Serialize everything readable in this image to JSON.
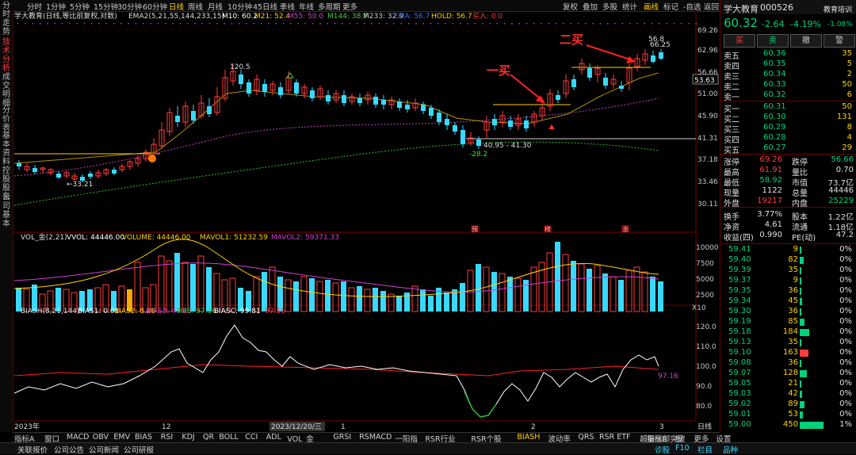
{
  "left_tabs": [
    "分时走势",
    "技术分析",
    "成交明细",
    "分价表",
    "基本资料",
    "控股股东",
    "公司基本"
  ],
  "toolbar": {
    "periods": [
      "分时",
      "1分钟",
      "5分钟",
      "15分钟",
      "30分钟",
      "60分钟",
      "日线",
      "周线",
      "月线",
      "10分钟",
      "45日线",
      "季线",
      "年线",
      "多周期",
      "更多"
    ],
    "active_period": "日线",
    "right_items": [
      "复权",
      "叠加",
      "多股",
      "统计",
      "画线",
      "标记",
      "-自选",
      "返回"
    ],
    "right_highlight": "画线"
  },
  "main_legend": {
    "stock": "学大教育(日线,等比前复权,对数)",
    "ema": "EMA2(5,21,55,144,233,15)",
    "items": [
      {
        "label": "M10: 60.2",
        "color": "#ffffff"
      },
      {
        "label": "M21: 52.4",
        "color": "#ffd200"
      },
      {
        "label": "M55: 50.0",
        "color": "#d040d0"
      },
      {
        "label": "M144: 38.7",
        "color": "#3cd03c"
      },
      {
        "label": "M233: 32.9",
        "color": "#cccccc"
      },
      {
        "label": "EMA: 56.7",
        "color": "#3c6cff"
      },
      {
        "label": "HOLD: 56.7",
        "color": "#ffd200"
      },
      {
        "label": "买入: 0.0",
        "color": "#ff3c3c"
      }
    ]
  },
  "price_axis": [
    "69.26",
    "62.96",
    "56.66",
    "51.00",
    "45.90",
    "41.31",
    "37.18",
    "33.46",
    "30.11"
  ],
  "current_price_tag": "53.63",
  "annotations": {
    "high1": "120.5",
    "low1": "←33.21",
    "low2": "-28.2",
    "range": "40.95 - 41.30",
    "high2": "56.8",
    "high3": "66.25",
    "buy1": "一买",
    "buy2": "二买",
    "tag1": "预",
    "tag2": "榜",
    "tag3": "涨"
  },
  "volume_legend": {
    "name": "VOL_金(2,21)",
    "items": [
      {
        "label": "VVOL: 44446.00",
        "color": "#ffffff"
      },
      {
        "label": "VOLUME: 44446.00",
        "color": "#ffd200"
      },
      {
        "label": "MAVOL1: 51232.59",
        "color": "#ffd200"
      },
      {
        "label": "MAVOL2: 59371.33",
        "color": "#d040d0"
      }
    ],
    "axis": [
      "10000",
      "7500",
      "5000",
      "2500"
    ],
    "unit": "X10"
  },
  "bias_legend": {
    "name": "BIASH(8,21,144)",
    "items": [
      {
        "label": "BIAS1: 0.01",
        "color": "#ffffff"
      },
      {
        "label": "BIAS2: 8.26",
        "color": "#ffd200"
      },
      {
        "label": "BIAS3: 43.13",
        "color": "#d040d0"
      },
      {
        "label": "RPS: 97.16",
        "color": "#3cd03c"
      },
      {
        "label": "BIASC: 99.81",
        "color": "#ffffff"
      },
      {
        "label": "- 97.16",
        "color": "#ff3c3c"
      }
    ],
    "axis": [
      "120.0",
      "110.0",
      "100.0",
      "90.0",
      "80.0"
    ],
    "last_value": "97.16"
  },
  "time_axis": {
    "labels": [
      "2023年",
      "12",
      "2023/12/20/三",
      "1",
      "2",
      "3"
    ],
    "right": "日线"
  },
  "indicator_bar": {
    "items": [
      "指标A",
      "窗口",
      "MACD",
      "OBV",
      "EMV",
      "BIAS",
      "RSI",
      "KDJ",
      "QR",
      "BOLL",
      "CCI",
      "ADL",
      "VOL_金",
      "GRSI",
      "RSMACD",
      "一阳指",
      "RSR行业",
      "RSR个股",
      "BIASH",
      "波动率",
      "QRS",
      "RSR ETF",
      "超量底部突破",
      "更多",
      "设置"
    ],
    "highlight": "BIASH",
    "right": [
      "指标B",
      "板"
    ]
  },
  "status_bar": {
    "left": [
      "关联报价",
      "公司公告",
      "公司新闻",
      "公司研报"
    ],
    "right": [
      "诊股",
      "F10",
      "栏目",
      "品种"
    ]
  },
  "quote": {
    "name": "学大教育",
    "code": "000526",
    "tag": "教育培训",
    "price": "60.32",
    "change": "-2.64",
    "change_pct": "-4.19%",
    "sector_pct": "-1.08%",
    "buttons": [
      "买",
      "卖",
      "撤",
      "警"
    ],
    "asks": [
      {
        "label": "卖五",
        "price": "60.36",
        "vol": "35"
      },
      {
        "label": "卖四",
        "price": "60.35",
        "vol": "5"
      },
      {
        "label": "卖三",
        "price": "60.34",
        "vol": "2"
      },
      {
        "label": "卖二",
        "price": "60.33",
        "vol": "50"
      },
      {
        "label": "卖一",
        "price": "60.32",
        "vol": "6"
      }
    ],
    "bids": [
      {
        "label": "买一",
        "price": "60.31",
        "vol": "50"
      },
      {
        "label": "买二",
        "price": "60.30",
        "vol": "131"
      },
      {
        "label": "买三",
        "price": "60.29",
        "vol": "8"
      },
      {
        "label": "买四",
        "price": "60.28",
        "vol": "4"
      },
      {
        "label": "买五",
        "price": "60.27",
        "vol": "29"
      }
    ],
    "stats": [
      {
        "l1": "涨停",
        "v1": "69.26",
        "c1": "red",
        "l2": "跌停",
        "v2": "56.66",
        "c2": "green"
      },
      {
        "l1": "最高",
        "v1": "61.91",
        "c1": "red",
        "l2": "量比",
        "v2": "0.70",
        "c2": "white"
      },
      {
        "l1": "最低",
        "v1": "58.92",
        "c1": "green",
        "l2": "市值",
        "v2": "73.7亿",
        "c2": "white"
      },
      {
        "l1": "现量",
        "v1": "1122",
        "c1": "white",
        "l2": "总量",
        "v2": "44446",
        "c2": "white"
      },
      {
        "l1": "外盘",
        "v1": "19217",
        "c1": "red",
        "l2": "内盘",
        "v2": "25229",
        "c2": "green"
      },
      {
        "l1": "换手",
        "v1": "3.77%",
        "c1": "white",
        "l2": "股本",
        "v2": "1.22亿",
        "c2": "white"
      },
      {
        "l1": "净资",
        "v1": "4.61",
        "c1": "white",
        "l2": "流通",
        "v2": "1.18亿",
        "c2": "white"
      },
      {
        "l1": "收益(四)",
        "v1": "0.990",
        "c1": "white",
        "l2": "PE(动)",
        "v2": "47.2",
        "c2": "white"
      }
    ],
    "ticks": [
      {
        "p": "59.41",
        "v": "9",
        "pct": "0%",
        "c": "green"
      },
      {
        "p": "59.40",
        "v": "82",
        "pct": "0%",
        "c": "green"
      },
      {
        "p": "59.39",
        "v": "35",
        "pct": "0%",
        "c": "green"
      },
      {
        "p": "59.37",
        "v": "9",
        "pct": "0%",
        "c": "green"
      },
      {
        "p": "59.35",
        "v": "36",
        "pct": "0%",
        "c": "green"
      },
      {
        "p": "59.34",
        "v": "45",
        "pct": "0%",
        "c": "green"
      },
      {
        "p": "59.30",
        "v": "36",
        "pct": "0%",
        "c": "green"
      },
      {
        "p": "59.19",
        "v": "85",
        "pct": "0%",
        "c": "green"
      },
      {
        "p": "59.18",
        "v": "184",
        "pct": "0%",
        "c": "green"
      },
      {
        "p": "59.13",
        "v": "35",
        "pct": "0%",
        "c": "green"
      },
      {
        "p": "59.10",
        "v": "163",
        "pct": "0%",
        "c": "red"
      },
      {
        "p": "59.08",
        "v": "36",
        "pct": "0%",
        "c": "green"
      },
      {
        "p": "59.07",
        "v": "128",
        "pct": "0%",
        "c": "green"
      },
      {
        "p": "59.05",
        "v": "21",
        "pct": "0%",
        "c": "green"
      },
      {
        "p": "59.03",
        "v": "42",
        "pct": "0%",
        "c": "green"
      },
      {
        "p": "59.02",
        "v": "89",
        "pct": "0%",
        "c": "green"
      },
      {
        "p": "59.01",
        "v": "53",
        "pct": "0%",
        "c": "green"
      },
      {
        "p": "59.00",
        "v": "450",
        "pct": "1%",
        "c": "green"
      }
    ]
  }
}
